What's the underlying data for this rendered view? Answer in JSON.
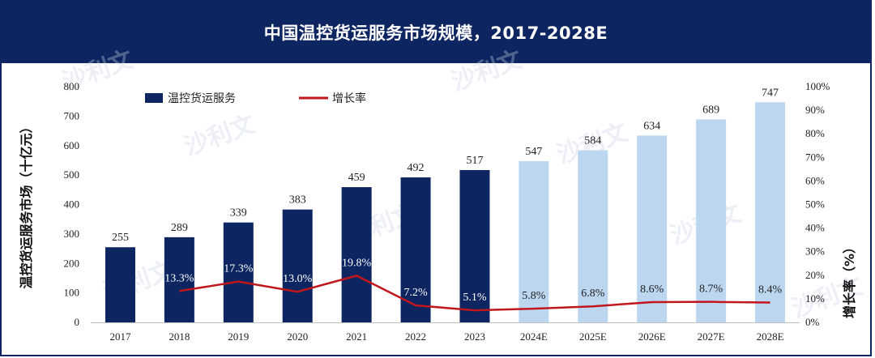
{
  "title": "中国温控货运服务市场规模，2017-2028E",
  "colors": {
    "title_bg": "#0d2560",
    "actual_bar": "#0d2560",
    "forecast_bar": "#bcd6ef",
    "growth_line": "#c0161c"
  },
  "watermark": "沙利文",
  "chart_data": {
    "type": "bar",
    "categories": [
      "2017",
      "2018",
      "2019",
      "2020",
      "2021",
      "2022",
      "2023",
      "2024E",
      "2025E",
      "2026E",
      "2027E",
      "2028E"
    ],
    "series": [
      {
        "name": "温控货运服务",
        "type": "bar",
        "values": [
          255,
          289,
          339,
          383,
          459,
          492,
          517,
          547,
          584,
          634,
          689,
          747
        ],
        "labels": [
          "255",
          "289",
          "339",
          "383",
          "459",
          "492",
          "517",
          "547",
          "584",
          "634",
          "689",
          "747"
        ],
        "forecast_from_index": 7
      },
      {
        "name": "增长率",
        "type": "line",
        "values": [
          null,
          13.3,
          17.3,
          13.0,
          19.8,
          7.2,
          5.1,
          5.8,
          6.8,
          8.6,
          8.7,
          8.4
        ],
        "labels": [
          "",
          "13.3%",
          "17.3%",
          "13.0%",
          "19.8%",
          "7.2%",
          "5.1%",
          "5.8%",
          "6.8%",
          "8.6%",
          "8.7%",
          "8.4%"
        ]
      }
    ],
    "ylabel": "温控货运服务市场（十亿元）",
    "ylabel_right": "增长率（%）",
    "ylim": [
      0,
      800
    ],
    "yticks": [
      "0",
      "100",
      "200",
      "300",
      "400",
      "500",
      "600",
      "700",
      "800"
    ],
    "ylim_right": [
      0,
      100
    ],
    "yticks_right": [
      "0%",
      "10%",
      "20%",
      "30%",
      "40%",
      "50%",
      "60%",
      "70%",
      "80%",
      "90%",
      "100%"
    ],
    "legend_position": "top-left",
    "grid": false
  }
}
